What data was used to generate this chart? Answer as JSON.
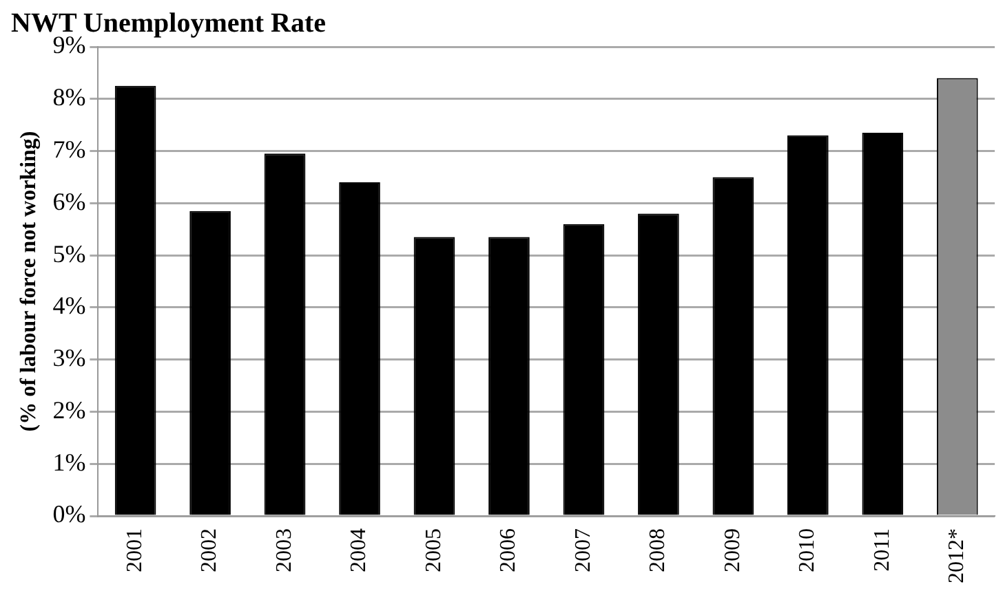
{
  "chart_data": {
    "type": "bar",
    "title": "NWT Unemployment Rate",
    "ylabel": "(% of labour force not working)",
    "categories": [
      "2001",
      "2002",
      "2003",
      "2004",
      "2005",
      "2006",
      "2007",
      "2008",
      "2009",
      "2010",
      "2011",
      "2012*"
    ],
    "values": [
      8.25,
      5.85,
      6.95,
      6.4,
      5.35,
      5.35,
      5.6,
      5.8,
      6.5,
      7.3,
      7.35,
      8.4
    ],
    "colors": [
      "#000000",
      "#000000",
      "#000000",
      "#000000",
      "#000000",
      "#000000",
      "#000000",
      "#000000",
      "#000000",
      "#000000",
      "#000000",
      "#8c8c8c"
    ],
    "ylim": [
      0,
      9
    ],
    "yticks": [
      {
        "value": 0,
        "label": "0%"
      },
      {
        "value": 1,
        "label": "1%"
      },
      {
        "value": 2,
        "label": "2%"
      },
      {
        "value": 3,
        "label": "3%"
      },
      {
        "value": 4,
        "label": "4%"
      },
      {
        "value": 5,
        "label": "5%"
      },
      {
        "value": 6,
        "label": "6%"
      },
      {
        "value": 7,
        "label": "7%"
      },
      {
        "value": 8,
        "label": "8%"
      },
      {
        "value": 9,
        "label": "9%"
      }
    ],
    "grid": "y",
    "legend": false
  }
}
